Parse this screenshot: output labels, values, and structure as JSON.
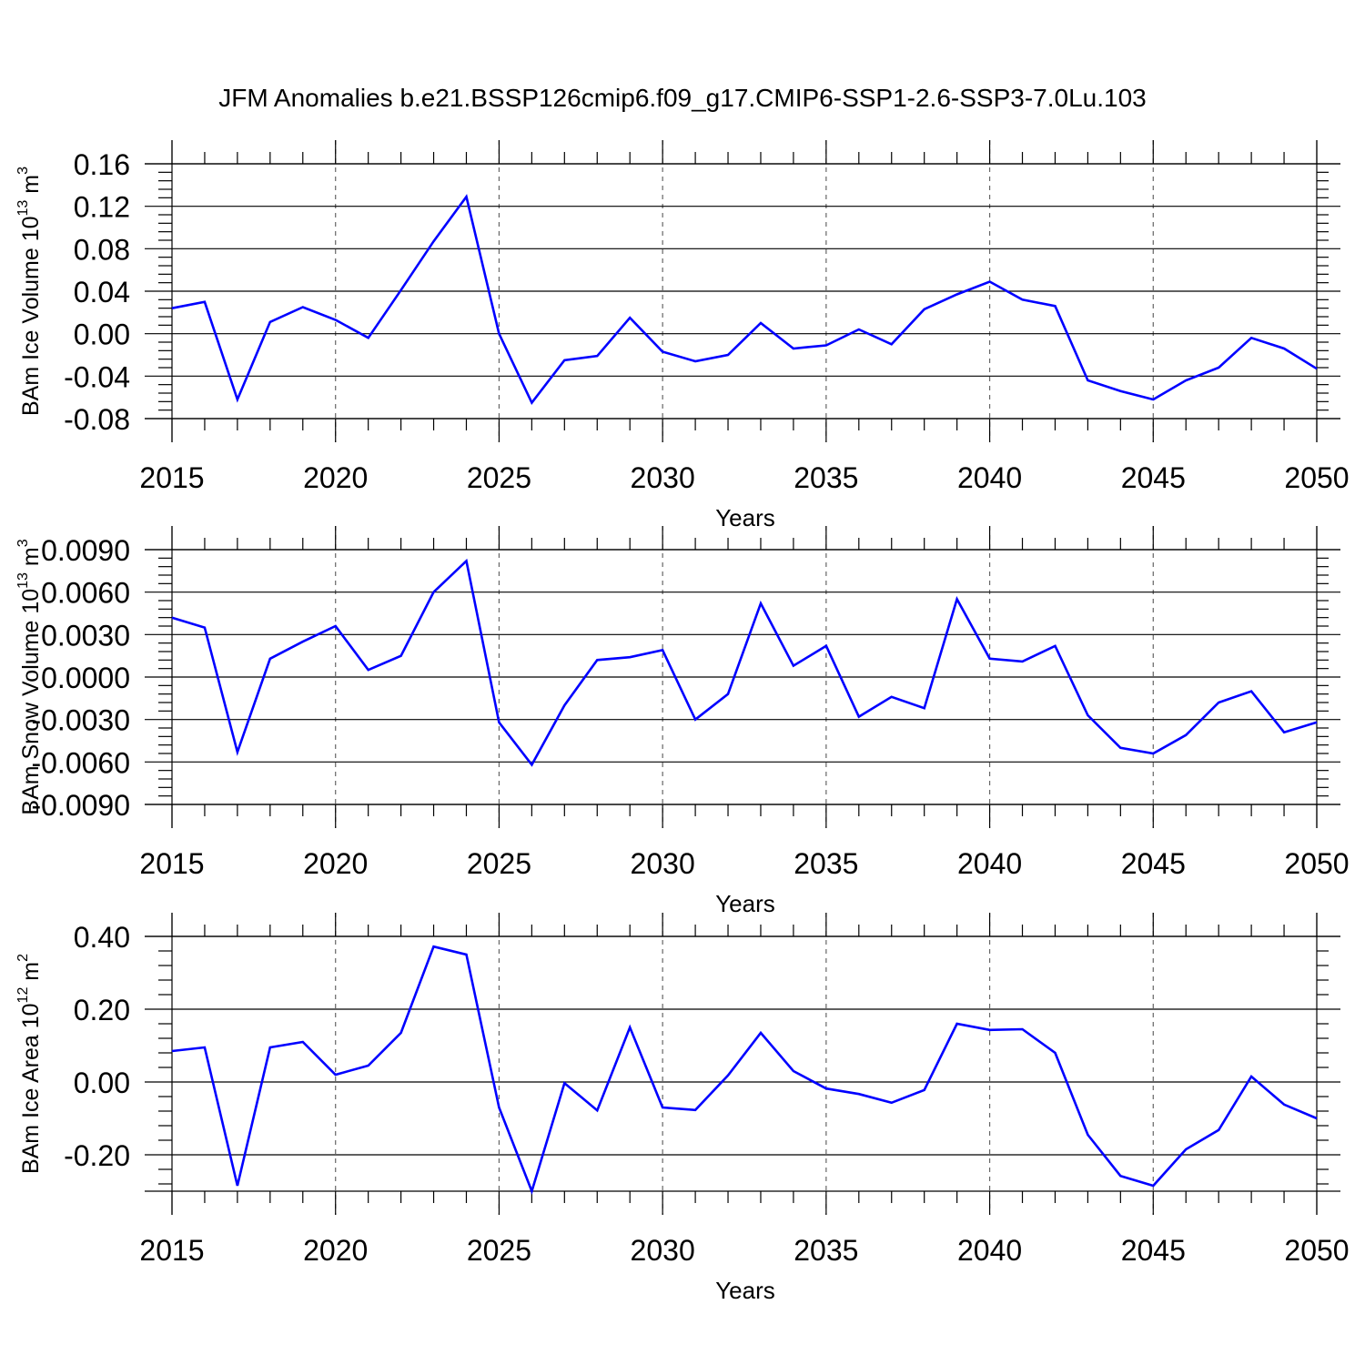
{
  "title": "JFM Anomalies b.e21.BSSP126cmip6.f09_g17.CMIP6-SSP1-2.6-SSP3-7.0Lu.103",
  "colors": {
    "line": "#0000ff",
    "axis": "#000000",
    "grid": "#666666"
  },
  "chart_data": [
    {
      "type": "line",
      "ylabel": "BAm Ice Volume 10",
      "ylabel_exp": "13",
      "ylabel_unit": "m",
      "ylabel_unit_exp": "3",
      "xlabel": "Years",
      "xlim": [
        2015,
        2050
      ],
      "ylim": [
        -0.08,
        0.16
      ],
      "x_ticks": [
        2015,
        2020,
        2025,
        2030,
        2035,
        2040,
        2045,
        2050
      ],
      "y_ticks": [
        -0.08,
        -0.04,
        0.0,
        0.04,
        0.08,
        0.12,
        0.16
      ],
      "y_tick_labels": [
        "-0.08",
        "-0.04",
        "0.00",
        "0.04",
        "0.08",
        "0.12",
        "0.16"
      ],
      "grid_x": [
        2020,
        2025,
        2030,
        2035,
        2040,
        2045
      ],
      "x": [
        2015,
        2016,
        2017,
        2018,
        2019,
        2020,
        2021,
        2022,
        2023,
        2024,
        2025,
        2026,
        2027,
        2028,
        2029,
        2030,
        2031,
        2032,
        2033,
        2034,
        2035,
        2036,
        2037,
        2038,
        2039,
        2040,
        2041,
        2042,
        2043,
        2044,
        2045,
        2046,
        2047,
        2048,
        2049,
        2050
      ],
      "series": [
        {
          "name": "BAm Ice Volume",
          "values": [
            0.024,
            0.03,
            -0.062,
            0.011,
            0.025,
            0.013,
            -0.004,
            0.041,
            0.087,
            0.129,
            0.0,
            -0.065,
            -0.025,
            -0.021,
            0.015,
            -0.017,
            -0.026,
            -0.02,
            0.01,
            -0.014,
            -0.011,
            0.004,
            -0.01,
            0.023,
            0.037,
            0.049,
            0.032,
            0.026,
            -0.044,
            -0.054,
            -0.062,
            -0.044,
            -0.032,
            -0.004,
            -0.014,
            -0.033
          ]
        }
      ]
    },
    {
      "type": "line",
      "ylabel": "BAm Snow Volume 10",
      "ylabel_exp": "13",
      "ylabel_unit": "m",
      "ylabel_unit_exp": "3",
      "xlabel": "Years",
      "xlim": [
        2015,
        2050
      ],
      "ylim": [
        -0.009,
        0.009
      ],
      "x_ticks": [
        2015,
        2020,
        2025,
        2030,
        2035,
        2040,
        2045,
        2050
      ],
      "y_ticks": [
        -0.009,
        -0.006,
        -0.003,
        0.0,
        0.003,
        0.006,
        0.009
      ],
      "y_tick_labels": [
        "-0.0090",
        "-0.0060",
        "-0.0030",
        "0.0000",
        "0.0030",
        "0.0060",
        "0.0090"
      ],
      "grid_x": [
        2020,
        2025,
        2030,
        2035,
        2040,
        2045
      ],
      "x": [
        2015,
        2016,
        2017,
        2018,
        2019,
        2020,
        2021,
        2022,
        2023,
        2024,
        2025,
        2026,
        2027,
        2028,
        2029,
        2030,
        2031,
        2032,
        2033,
        2034,
        2035,
        2036,
        2037,
        2038,
        2039,
        2040,
        2041,
        2042,
        2043,
        2044,
        2045,
        2046,
        2047,
        2048,
        2049,
        2050
      ],
      "series": [
        {
          "name": "BAm Snow Volume",
          "values": [
            0.0042,
            0.0035,
            -0.0053,
            0.0013,
            0.0025,
            0.0036,
            0.0005,
            0.0015,
            0.006,
            0.0082,
            -0.0032,
            -0.0062,
            -0.002,
            0.0012,
            0.0014,
            0.0019,
            -0.003,
            -0.0012,
            0.0052,
            0.0008,
            0.0022,
            -0.0028,
            -0.0014,
            -0.0022,
            0.0055,
            0.0013,
            0.0011,
            0.0022,
            -0.0027,
            -0.005,
            -0.0054,
            -0.0041,
            -0.0018,
            -0.001,
            -0.0039,
            -0.0032
          ]
        }
      ]
    },
    {
      "type": "line",
      "ylabel": "BAm Ice Area 10",
      "ylabel_exp": "12",
      "ylabel_unit": "m",
      "ylabel_unit_exp": "2",
      "xlabel": "Years",
      "xlim": [
        2015,
        2050
      ],
      "ylim": [
        -0.3,
        0.4
      ],
      "x_ticks": [
        2015,
        2020,
        2025,
        2030,
        2035,
        2040,
        2045,
        2050
      ],
      "y_ticks": [
        -0.2,
        0.0,
        0.2,
        0.4
      ],
      "y_tick_labels": [
        "-0.20",
        "0.00",
        "0.20",
        "0.40"
      ],
      "grid_x": [
        2020,
        2025,
        2030,
        2035,
        2040,
        2045
      ],
      "x": [
        2015,
        2016,
        2017,
        2018,
        2019,
        2020,
        2021,
        2022,
        2023,
        2024,
        2025,
        2026,
        2027,
        2028,
        2029,
        2030,
        2031,
        2032,
        2033,
        2034,
        2035,
        2036,
        2037,
        2038,
        2039,
        2040,
        2041,
        2042,
        2043,
        2044,
        2045,
        2046,
        2047,
        2048,
        2049,
        2050
      ],
      "series": [
        {
          "name": "BAm Ice Area",
          "values": [
            0.085,
            0.095,
            -0.285,
            0.095,
            0.11,
            0.02,
            0.045,
            0.135,
            0.372,
            0.35,
            -0.07,
            -0.3,
            -0.003,
            -0.078,
            0.15,
            -0.07,
            -0.077,
            0.018,
            0.135,
            0.03,
            -0.018,
            -0.033,
            -0.057,
            -0.022,
            0.16,
            0.143,
            0.145,
            0.08,
            -0.145,
            -0.258,
            -0.285,
            -0.185,
            -0.132,
            0.015,
            -0.062,
            -0.1
          ]
        }
      ]
    }
  ]
}
